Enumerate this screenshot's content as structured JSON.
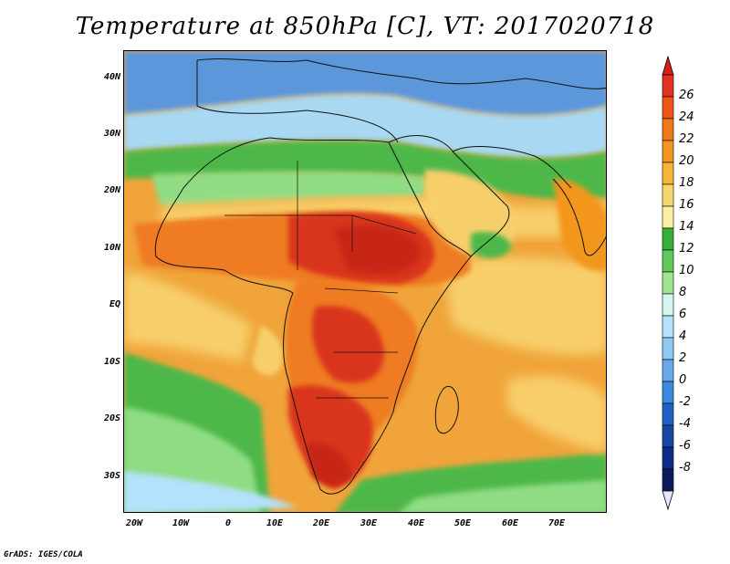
{
  "title": "Temperature at 850hPa [C], VT: 2017020718",
  "credit": "GrADS: IGES/COLA",
  "lat_labels": [
    "40N",
    "30N",
    "20N",
    "10N",
    "EQ",
    "10S",
    "20S",
    "30S"
  ],
  "lon_labels": [
    "20W",
    "10W",
    "0",
    "10E",
    "20E",
    "30E",
    "40E",
    "50E",
    "60E",
    "70E"
  ],
  "colorbar": {
    "labels": [
      "26",
      "24",
      "22",
      "20",
      "18",
      "16",
      "14",
      "12",
      "10",
      "8",
      "6",
      "4",
      "2",
      "0",
      "-2",
      "-4",
      "-6",
      "-8"
    ],
    "colors": [
      "#e0321f",
      "#ee5518",
      "#f2781c",
      "#f3961f",
      "#f5b53a",
      "#f8d66e",
      "#faeea3",
      "#39ad3a",
      "#5fc95a",
      "#9ee592",
      "#d7f5ef",
      "#b4e1fb",
      "#8ecaf3",
      "#6aa9e9",
      "#3e87de",
      "#2060c4",
      "#1547a4",
      "#0d2b86",
      "#0b1a5a"
    ],
    "top_cap": "#d8201a",
    "bottom_cap": "#e6e6ff"
  },
  "map_colors": {
    "ocean_warm": "#f0a43a",
    "hot": "#d9361f",
    "very_hot": "#c72514",
    "orange": "#ef7c21",
    "yellow": "#f7cf6b",
    "green": "#4db849",
    "light_green": "#8fdc84",
    "cool": "#a9d8f3",
    "blue": "#5c97dc"
  }
}
